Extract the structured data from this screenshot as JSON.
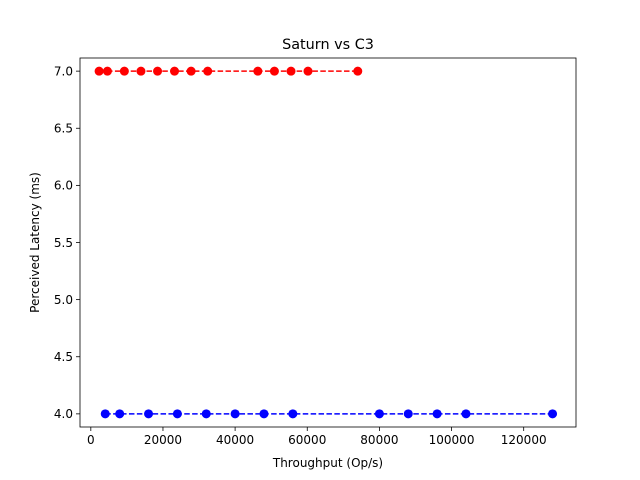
{
  "chart_data": {
    "type": "line",
    "title": "Saturn vs C3",
    "xlabel": "Throughput (Op/s)",
    "ylabel": "Perceived Latency (ms)",
    "xlim": [
      -3000,
      134500
    ],
    "ylim": [
      3.885,
      7.115
    ],
    "xticks": [
      0,
      20000,
      40000,
      60000,
      80000,
      100000,
      120000
    ],
    "xtick_labels": [
      "0",
      "20000",
      "40000",
      "60000",
      "80000",
      "100000",
      "120000"
    ],
    "yticks": [
      4.0,
      4.5,
      5.0,
      5.5,
      6.0,
      6.5,
      7.0
    ],
    "ytick_labels": [
      "4.0",
      "4.5",
      "5.0",
      "5.5",
      "6.0",
      "6.5",
      "7.0"
    ],
    "grid": false,
    "series": [
      {
        "color": "#ff0000",
        "linestyle": "dashed",
        "marker": "circle",
        "x": [
          2300,
          4600,
          9300,
          13900,
          18500,
          23200,
          27800,
          32400,
          46300,
          50900,
          55500,
          60200,
          74000
        ],
        "y": [
          7,
          7,
          7,
          7,
          7,
          7,
          7,
          7,
          7,
          7,
          7,
          7,
          7
        ]
      },
      {
        "color": "#0000ff",
        "linestyle": "dashed",
        "marker": "circle",
        "x": [
          4000,
          8000,
          16000,
          24000,
          32000,
          40000,
          48000,
          56000,
          80000,
          88000,
          96000,
          104000,
          128000
        ],
        "y": [
          4,
          4,
          4,
          4,
          4,
          4,
          4,
          4,
          4,
          4,
          4,
          4,
          4
        ]
      }
    ]
  }
}
